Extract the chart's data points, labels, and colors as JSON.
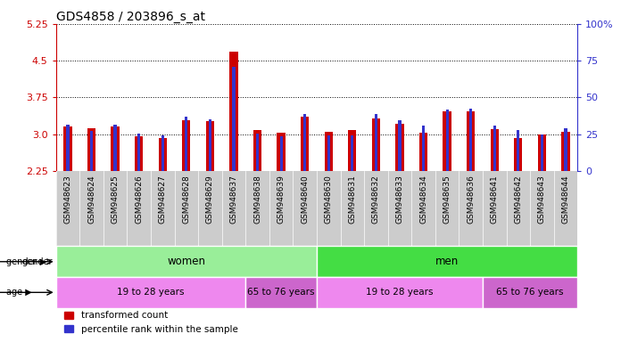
{
  "title": "GDS4858 / 203896_s_at",
  "samples": [
    "GSM948623",
    "GSM948624",
    "GSM948625",
    "GSM948626",
    "GSM948627",
    "GSM948628",
    "GSM948629",
    "GSM948637",
    "GSM948638",
    "GSM948639",
    "GSM948640",
    "GSM948630",
    "GSM948631",
    "GSM948632",
    "GSM948633",
    "GSM948634",
    "GSM948635",
    "GSM948636",
    "GSM948641",
    "GSM948642",
    "GSM948643",
    "GSM948644"
  ],
  "red_values": [
    3.15,
    3.13,
    3.15,
    2.95,
    2.93,
    3.28,
    3.26,
    4.68,
    3.08,
    3.03,
    3.35,
    3.05,
    3.08,
    3.33,
    3.22,
    3.03,
    3.47,
    3.47,
    3.1,
    2.92,
    3.0,
    3.05
  ],
  "blue_top_values": [
    3.2,
    3.07,
    3.2,
    3.02,
    2.97,
    3.35,
    3.3,
    4.38,
    3.02,
    2.95,
    3.42,
    2.97,
    2.98,
    3.42,
    3.28,
    3.18,
    3.5,
    3.52,
    3.18,
    3.08,
    2.99,
    3.12
  ],
  "ymin": 2.25,
  "ymax": 5.25,
  "yticks_left": [
    2.25,
    3.0,
    3.75,
    4.5,
    5.25
  ],
  "yticks_right": [
    0,
    25,
    50,
    75,
    100
  ],
  "gender_blocks": [
    {
      "label": "women",
      "start": 0,
      "end": 11,
      "color": "#99EE99"
    },
    {
      "label": "men",
      "start": 11,
      "end": 22,
      "color": "#44DD44"
    }
  ],
  "age_blocks": [
    {
      "label": "19 to 28 years",
      "start": 0,
      "end": 8,
      "color": "#EE88EE"
    },
    {
      "label": "65 to 76 years",
      "start": 8,
      "end": 11,
      "color": "#CC66CC"
    },
    {
      "label": "19 to 28 years",
      "start": 11,
      "end": 18,
      "color": "#EE88EE"
    },
    {
      "label": "65 to 76 years",
      "start": 18,
      "end": 22,
      "color": "#CC66CC"
    }
  ],
  "red_color": "#CC0000",
  "blue_color": "#3333CC",
  "left_axis_color": "#CC0000",
  "right_axis_color": "#3333CC",
  "bg_color": "#FFFFFF",
  "xlabel_bg": "#CCCCCC"
}
